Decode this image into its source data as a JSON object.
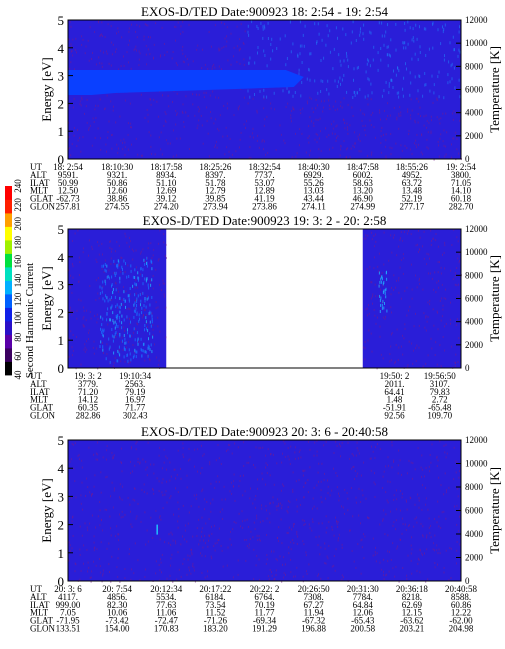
{
  "colorbar": {
    "label": "Second Harmonic Current",
    "ticks": [
      "40",
      "60",
      "80",
      "100",
      "120",
      "140",
      "160",
      "180",
      "200",
      "220",
      "240"
    ],
    "colors": [
      "#000000",
      "#3b0060",
      "#5a00a8",
      "#2a10c8",
      "#1020e8",
      "#0060ff",
      "#00b0ff",
      "#00e0c0",
      "#00e040",
      "#a0f000",
      "#ffff00",
      "#ffa000",
      "#ff2000",
      "#ff0000"
    ]
  },
  "colors": {
    "background": "#2a1ed8",
    "band": "#0a40ff",
    "speckle": "#7a1a8a",
    "wave": "#1e90ff"
  },
  "chart_data": [
    {
      "type": "heatmap",
      "title": "EXOS-D/TED   Date:900923  18: 2:54 - 19: 2:54",
      "ylabel": "Energy [eV]",
      "y2label": "Temperature [K]",
      "ylim": [
        0,
        5
      ],
      "y2lim": [
        0,
        12000
      ],
      "yticks": [
        "0",
        "1",
        "2",
        "3",
        "4",
        "5"
      ],
      "y2ticks": [
        "0",
        "2000",
        "4000",
        "6000",
        "8000",
        "10000",
        "12000"
      ],
      "band": {
        "energy_range": [
          2.3,
          3.2
        ],
        "end_fraction": 0.6
      },
      "info_rows": [
        {
          "label": "UT",
          "values": [
            "18: 2:54",
            "18:10:30",
            "18:17:58",
            "18:25:26",
            "18:32:54",
            "18:40:30",
            "18:47:58",
            "18:55:26",
            "19: 2:54"
          ]
        },
        {
          "label": "ALT",
          "values": [
            "9591.",
            "9321.",
            "8934.",
            "8397.",
            "7737.",
            "6929.",
            "6002.",
            "4952.",
            "3800."
          ]
        },
        {
          "label": "ILAT",
          "values": [
            "50.99",
            "50.86",
            "51.10",
            "51.78",
            "53.07",
            "55.26",
            "58.63",
            "63.72",
            "71.05"
          ]
        },
        {
          "label": "MLT",
          "values": [
            "12.50",
            "12.60",
            "12.69",
            "12.79",
            "12.89",
            "13.03",
            "13.20",
            "13.48",
            "14.10"
          ]
        },
        {
          "label": "GLAT",
          "values": [
            "-62.73",
            "38.86",
            "39.12",
            "39.85",
            "41.19",
            "43.44",
            "46.90",
            "52.19",
            "60.18"
          ]
        },
        {
          "label": "GLON",
          "values": [
            "257.81",
            "274.55",
            "274.20",
            "273.94",
            "273.86",
            "274.11",
            "274.99",
            "277.17",
            "282.70"
          ]
        }
      ]
    },
    {
      "type": "heatmap",
      "title": "EXOS-D/TED   Date:900923  19: 3: 2 - 20: 2:58",
      "ylabel": "Energy [eV]",
      "y2label": "Temperature [K]",
      "ylim": [
        0,
        5
      ],
      "y2lim": [
        0,
        12000
      ],
      "yticks": [
        "0",
        "1",
        "2",
        "3",
        "4",
        "5"
      ],
      "y2ticks": [
        "0",
        "2000",
        "4000",
        "6000",
        "8000",
        "10000",
        "12000"
      ],
      "data_segments": [
        [
          0.0,
          0.25
        ],
        [
          0.75,
          1.0
        ]
      ],
      "info_rows": [
        {
          "label": "UT",
          "values": [
            "19: 3: 2",
            "19:10:34",
            "19:50: 2",
            "19:56:50"
          ]
        },
        {
          "label": "ALT",
          "values": [
            "3779.",
            "2563.",
            "2011.",
            "3107."
          ]
        },
        {
          "label": "ILAT",
          "values": [
            "71.20",
            "79.19",
            "64.41",
            "79.83"
          ]
        },
        {
          "label": "MLT",
          "values": [
            "14.12",
            "16.97",
            "1.48",
            "2.72"
          ]
        },
        {
          "label": "GLAT",
          "values": [
            "60.35",
            "71.77",
            "-51.91",
            "-65.48"
          ]
        },
        {
          "label": "GLON",
          "values": [
            "282.86",
            "302.43",
            "92.56",
            "109.70"
          ]
        }
      ]
    },
    {
      "type": "heatmap",
      "title": "EXOS-D/TED   Date:900923  20: 3: 6 - 20:40:58",
      "ylabel": "Energy [eV]",
      "y2label": "Temperature [K]",
      "ylim": [
        0,
        5
      ],
      "y2lim": [
        0,
        12000
      ],
      "yticks": [
        "0",
        "1",
        "2",
        "3",
        "4",
        "5"
      ],
      "y2ticks": [
        "0",
        "2000",
        "4000",
        "6000",
        "8000",
        "10000",
        "12000"
      ],
      "info_rows": [
        {
          "label": "UT",
          "values": [
            "20: 3: 6",
            "20: 7:54",
            "20:12:34",
            "20:17:22",
            "20:22: 2",
            "20:26:50",
            "20:31:30",
            "20:36:18",
            "20:40:58"
          ]
        },
        {
          "label": "ALT",
          "values": [
            "4117.",
            "4856.",
            "5534.",
            "6184.",
            "6764.",
            "7308.",
            "7784.",
            "8218.",
            "8588."
          ]
        },
        {
          "label": "ILAT",
          "values": [
            "999.00",
            "82.30",
            "77.63",
            "73.54",
            "70.19",
            "67.27",
            "64.84",
            "62.69",
            "60.86"
          ]
        },
        {
          "label": "MLT",
          "values": [
            "7.05",
            "10.06",
            "11.06",
            "11.52",
            "11.77",
            "11.94",
            "12.06",
            "12.15",
            "12.22"
          ]
        },
        {
          "label": "GLAT",
          "values": [
            "-71.95",
            "-73.42",
            "-72.47",
            "-71.26",
            "-69.34",
            "-67.32",
            "-65.43",
            "-63.62",
            "-62.00"
          ]
        },
        {
          "label": "GLON",
          "values": [
            "133.51",
            "154.00",
            "170.83",
            "183.20",
            "191.29",
            "196.88",
            "200.58",
            "203.21",
            "204.98"
          ]
        }
      ]
    }
  ]
}
